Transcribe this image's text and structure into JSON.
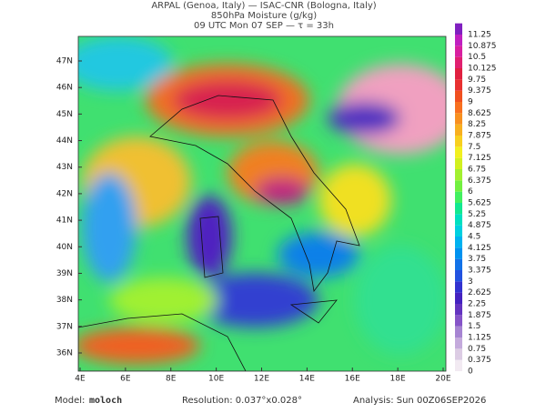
{
  "header": {
    "line1": "ARPAL (Genoa, Italy)  —  ISAC-CNR (Bologna, Italy)",
    "line2": "850hPa Moisture (g/kg)",
    "line3": "09 UTC Mon 07 SEP  —  τ = 33h"
  },
  "map": {
    "lon_ticks": [
      "4E",
      "6E",
      "8E",
      "10E",
      "12E",
      "14E",
      "16E",
      "18E",
      "20E"
    ],
    "lat_ticks": [
      "36N",
      "37N",
      "38N",
      "39N",
      "40N",
      "41N",
      "42N",
      "43N",
      "44N",
      "45N",
      "46N",
      "47N"
    ]
  },
  "colorbar": {
    "levels": [
      0,
      0.375,
      0.75,
      1.125,
      1.5,
      1.875,
      2.25,
      2.625,
      3,
      3.375,
      3.75,
      4.125,
      4.5,
      4.875,
      5.25,
      5.625,
      6,
      6.375,
      6.75,
      7.125,
      7.5,
      7.875,
      8.25,
      8.625,
      9,
      9.375,
      9.75,
      10.125,
      10.5,
      10.875,
      11.25
    ],
    "colors": [
      "#f2eaf2",
      "#dccce4",
      "#c4aadc",
      "#a684d2",
      "#8654c8",
      "#6434c0",
      "#4422c0",
      "#3232d0",
      "#2252e0",
      "#1272e8",
      "#0092f0",
      "#00b2f0",
      "#00d0e0",
      "#00e0c0",
      "#12e890",
      "#42f060",
      "#72f040",
      "#a2f030",
      "#d2f020",
      "#f2f020",
      "#f8d020",
      "#f8b020",
      "#f89020",
      "#f87020",
      "#f05020",
      "#e83030",
      "#e02040",
      "#e02070",
      "#d820a0",
      "#c020c0",
      "#8020c0"
    ]
  },
  "footer": {
    "model_label": "Model:",
    "model": "moloch",
    "resolution": "Resolution: 0.037°x0.028°",
    "analysis": "Analysis: Sun 00Z06SEP2026"
  }
}
